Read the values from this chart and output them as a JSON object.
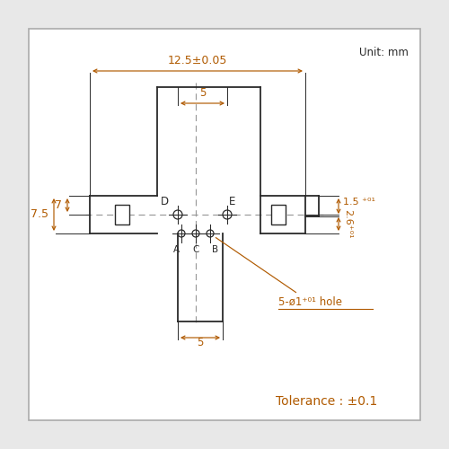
{
  "bg_color": "#e8e8e8",
  "box_facecolor": "#ffffff",
  "line_color": "#2a2a2a",
  "dim_color": "#b05a00",
  "unit_text": "Unit: mm",
  "tolerance_text": "Tolerance : ±0.1",
  "dim_125": "12.5±0.05",
  "dim_5_top": "5",
  "dim_5_bot": "5",
  "dim_7": "7",
  "dim_75": "7.5",
  "label_D": "D",
  "label_E": "E",
  "label_A": "A",
  "label_C": "C",
  "label_B": "B",
  "hole_text": "5-ø1⁺⁰¹ hole",
  "dim_15_text": "1.5 ⁺⁰¹",
  "dim_26_text": "2.6⁺⁰¹"
}
